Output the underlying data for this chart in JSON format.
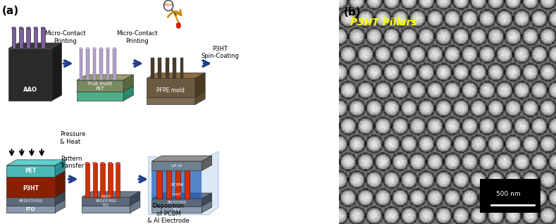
{
  "fig_width": 7.89,
  "fig_height": 3.18,
  "dpi": 100,
  "background_color": "#ffffff",
  "panel_a_label": "(a)",
  "panel_b_label": "(b)",
  "label_fontsize": 11,
  "label_color": "#000000",
  "panel_b_title": "P3HT Pillars",
  "panel_b_title_color": "#ffff00",
  "panel_b_title_fontsize": 10,
  "scalebar_text": "500 nm",
  "arrow_color": "#1f3d8c",
  "box_colors": {
    "aao_dark": "#2a2a2a",
    "aao_pillars": "#7b5fa0",
    "pua_base": "#4caf8a",
    "pua_pillars": "#b0a0c8",
    "pfpe_base": "#6b5a40",
    "pfpe_top": "#8a7a60",
    "pet_layer": "#4cb8b8",
    "p3ht_layer": "#8b2000",
    "pedot_layer": "#5a6a7a",
    "ito_layer": "#8a9aaa",
    "p3ht_pillars": "#cc3300",
    "pcbm_layer": "#1a5ab8",
    "lif_layer": "#708090",
    "final_box_bg": "#a8c8e8"
  }
}
